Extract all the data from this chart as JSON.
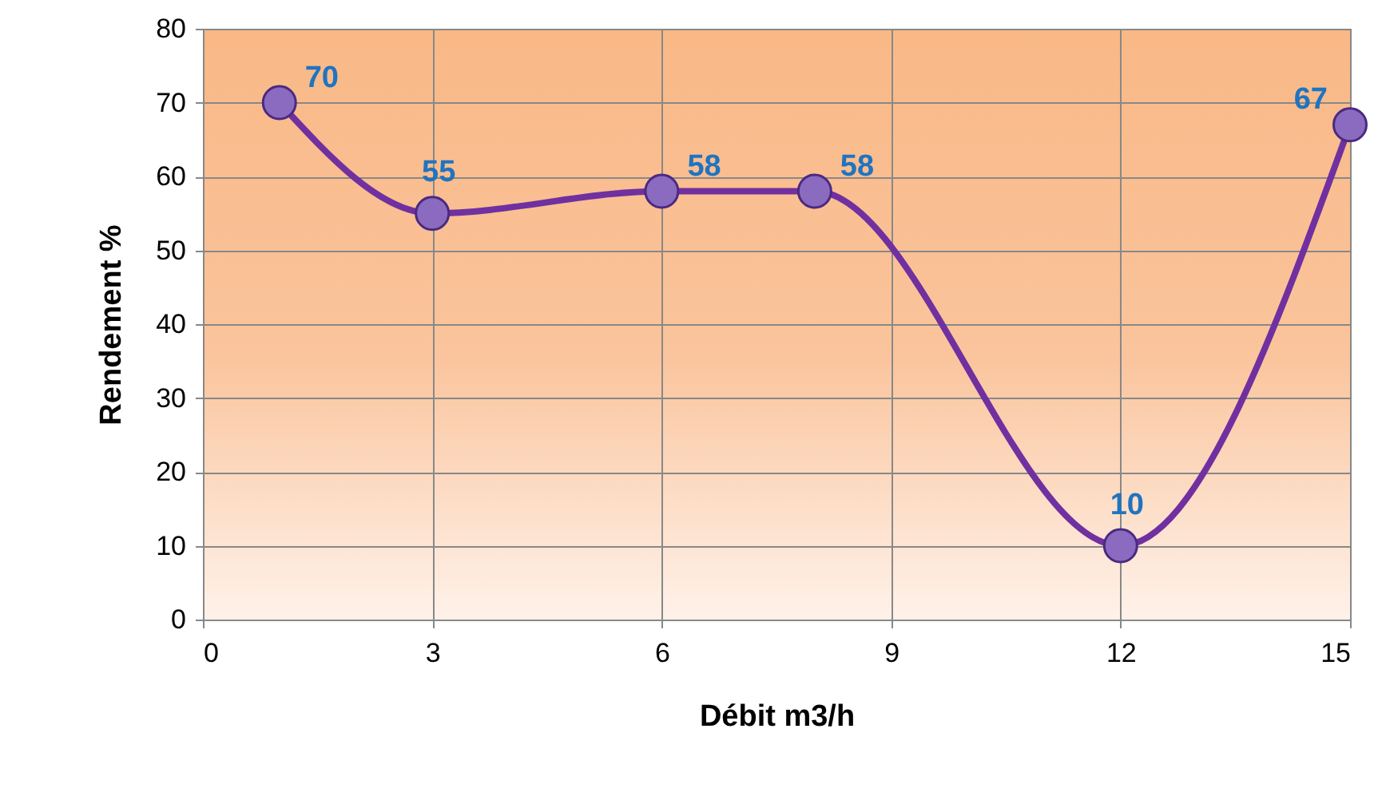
{
  "chart_data": {
    "type": "line",
    "xlabel": "Débit m3/h",
    "ylabel": "Rendement %",
    "x": [
      1,
      3,
      6,
      8,
      12,
      15
    ],
    "series": [
      {
        "color": "#7030a0",
        "values": [
          70,
          55,
          58,
          58,
          10,
          67
        ]
      }
    ],
    "xlim": [
      0,
      15
    ],
    "xticks": [
      0,
      3,
      6,
      9,
      12,
      15
    ],
    "ylim": [
      0,
      80
    ],
    "yticks": [
      0,
      10,
      20,
      30,
      40,
      50,
      60,
      70,
      80
    ],
    "grid": true,
    "marker": "circle",
    "line_style": "solid",
    "data_labels": true
  }
}
